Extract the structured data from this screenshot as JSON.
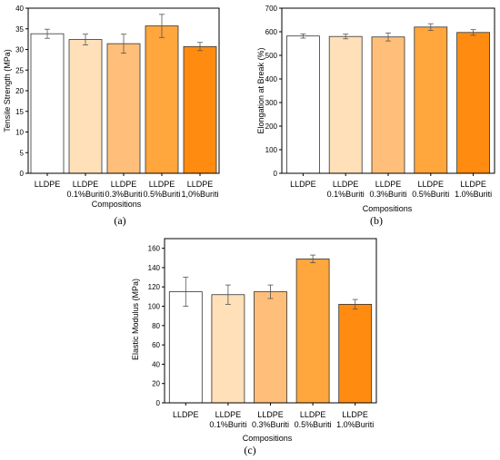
{
  "chart_data": [
    {
      "type": "bar",
      "panel_label": "(a)",
      "xlabel": "Compositions",
      "ylabel": "Tensile Strength (MPa)",
      "ylim": [
        0,
        40
      ],
      "yticks": [
        0,
        5,
        10,
        15,
        20,
        25,
        30,
        35,
        40
      ],
      "categories": [
        [
          "LLDPE"
        ],
        [
          "LLDPE",
          "0.1%Buriti"
        ],
        [
          "LLDPE",
          "0.3%Buriti"
        ],
        [
          "LLDPE",
          "0.5%Buriti"
        ],
        [
          "LLDPE",
          "1,0%Buriti"
        ]
      ],
      "values": [
        33.8,
        32.4,
        31.4,
        35.7,
        30.7
      ],
      "errors": [
        1.1,
        1.3,
        2.3,
        2.8,
        1.0
      ],
      "colors": [
        "#ffffff",
        "#ffe0b8",
        "#ffbf7a",
        "#ffa63d",
        "#ff8c10"
      ],
      "grid": false
    },
    {
      "type": "bar",
      "panel_label": "(b)",
      "xlabel": "Compositions",
      "ylabel": "Elongation at Break (%)",
      "ylim": [
        0,
        700
      ],
      "yticks": [
        0,
        100,
        200,
        300,
        400,
        500,
        600,
        700
      ],
      "categories": [
        [
          "LLDPE"
        ],
        [
          "LLDPE",
          "0.1%Buriti"
        ],
        [
          "LLDPE",
          "0.3%Buriti"
        ],
        [
          "LLDPE",
          "0.5%Buriti"
        ],
        [
          "LLDPE",
          "1.0%Buriti"
        ]
      ],
      "values": [
        582,
        580,
        578,
        620,
        597
      ],
      "errors": [
        9,
        10,
        17,
        14,
        12
      ],
      "colors": [
        "#ffffff",
        "#ffe0b8",
        "#ffbf7a",
        "#ffa63d",
        "#ff8c10"
      ],
      "grid": false
    },
    {
      "type": "bar",
      "panel_label": "(c)",
      "xlabel": "Compositions",
      "ylabel": "Elastic Modulus (MPa)",
      "ylim": [
        0,
        170
      ],
      "yticks": [
        0,
        20,
        40,
        60,
        80,
        100,
        120,
        140,
        160
      ],
      "categories": [
        [
          "LLDPE"
        ],
        [
          "LLDPE",
          "0.1%Buriti"
        ],
        [
          "LLDPE",
          "0.3%Buriti"
        ],
        [
          "LLDPE",
          "0.5%Buriti"
        ],
        [
          "LLDPE",
          "1.0%Buriti"
        ]
      ],
      "values": [
        115,
        112,
        115,
        149,
        102
      ],
      "errors": [
        15,
        10,
        7,
        4,
        5
      ],
      "colors": [
        "#ffffff",
        "#ffe0b8",
        "#ffbf7a",
        "#ffa63d",
        "#ff8c10"
      ],
      "grid": false
    }
  ]
}
